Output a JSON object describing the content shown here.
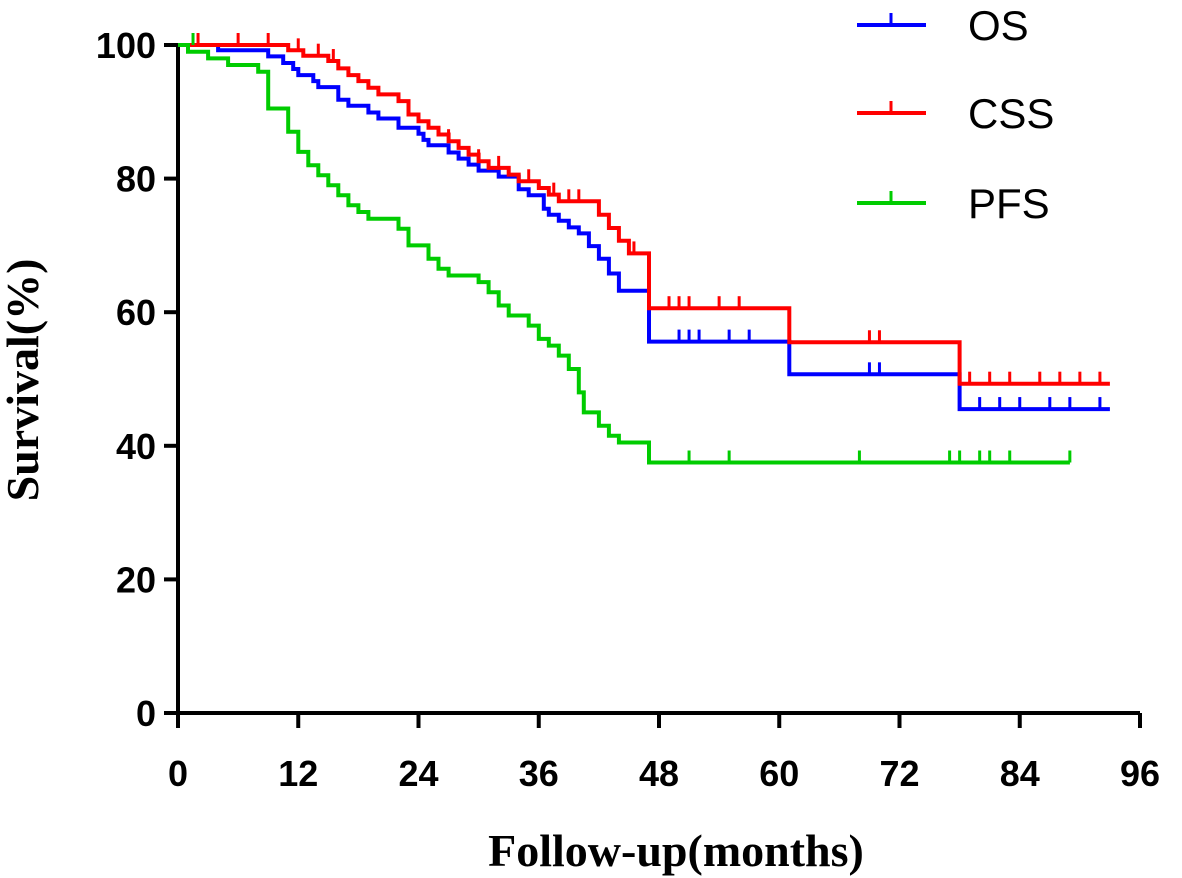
{
  "chart_data": {
    "type": "line",
    "subtype": "kaplan-meier",
    "title": "",
    "xlabel": "Follow-up(months)",
    "ylabel": "Survival(%)",
    "xlim": [
      0,
      96
    ],
    "ylim": [
      0,
      100
    ],
    "xticks": [
      0,
      12,
      24,
      36,
      48,
      60,
      72,
      84,
      96
    ],
    "yticks": [
      0,
      20,
      40,
      60,
      80,
      100
    ],
    "grid": false,
    "legend_position": "top-right",
    "series": [
      {
        "name": "OS",
        "color": "#0000ff",
        "steps": [
          [
            0,
            100
          ],
          [
            4,
            99.2
          ],
          [
            9,
            98.3
          ],
          [
            10.5,
            97.3
          ],
          [
            11.5,
            96.4
          ],
          [
            12,
            95.5
          ],
          [
            13.5,
            94.6
          ],
          [
            14,
            93.7
          ],
          [
            16,
            91.8
          ],
          [
            17,
            90.9
          ],
          [
            19,
            89.9
          ],
          [
            20,
            89
          ],
          [
            22,
            87.6
          ],
          [
            24,
            86.7
          ],
          [
            24.5,
            85.8
          ],
          [
            25,
            85
          ],
          [
            27,
            83.9
          ],
          [
            28,
            83
          ],
          [
            29,
            82.1
          ],
          [
            30,
            81.2
          ],
          [
            32,
            80.3
          ],
          [
            34,
            78.4
          ],
          [
            35,
            77.5
          ],
          [
            36.5,
            75.5
          ],
          [
            37,
            74.6
          ],
          [
            38,
            73.7
          ],
          [
            39,
            72.7
          ],
          [
            40,
            71.8
          ],
          [
            41,
            69.9
          ],
          [
            42,
            68
          ],
          [
            43,
            65.8
          ],
          [
            44,
            63.2
          ],
          [
            47,
            55.6
          ],
          [
            61,
            50.7
          ],
          [
            78,
            45.5
          ],
          [
            93,
            45.5
          ]
        ],
        "censored": [
          [
            50,
            55.6
          ],
          [
            51,
            55.6
          ],
          [
            52,
            55.6
          ],
          [
            55,
            55.6
          ],
          [
            57,
            55.6
          ],
          [
            69,
            50.7
          ],
          [
            70,
            50.7
          ],
          [
            80,
            45.5
          ],
          [
            82,
            45.5
          ],
          [
            84,
            45.5
          ],
          [
            87,
            45.5
          ],
          [
            89,
            45.5
          ],
          [
            92,
            45.5
          ]
        ]
      },
      {
        "name": "CSS",
        "color": "#ff0000",
        "steps": [
          [
            0,
            100
          ],
          [
            11,
            99.2
          ],
          [
            12.5,
            98.4
          ],
          [
            15,
            97.6
          ],
          [
            16,
            96.5
          ],
          [
            17,
            95.5
          ],
          [
            18,
            94.6
          ],
          [
            19,
            93.6
          ],
          [
            20,
            92.6
          ],
          [
            22,
            91.6
          ],
          [
            23,
            89.6
          ],
          [
            24,
            88.6
          ],
          [
            25,
            87.6
          ],
          [
            26,
            86.6
          ],
          [
            27,
            85.6
          ],
          [
            28,
            84.6
          ],
          [
            29,
            83.6
          ],
          [
            30,
            82.6
          ],
          [
            31,
            81.6
          ],
          [
            33,
            80.6
          ],
          [
            34,
            79.6
          ],
          [
            36,
            78.6
          ],
          [
            37,
            77.6
          ],
          [
            38,
            76.6
          ],
          [
            42,
            74.6
          ],
          [
            43,
            72.6
          ],
          [
            44,
            70.7
          ],
          [
            45,
            68.8
          ],
          [
            47,
            60.6
          ],
          [
            61,
            55.5
          ],
          [
            78,
            49.3
          ],
          [
            93,
            49.3
          ]
        ],
        "censored": [
          [
            2,
            100
          ],
          [
            6,
            100
          ],
          [
            9,
            100
          ],
          [
            12,
            99.2
          ],
          [
            14,
            98.4
          ],
          [
            15.5,
            97.6
          ],
          [
            27,
            85.6
          ],
          [
            30,
            82.6
          ],
          [
            32,
            81.6
          ],
          [
            35,
            79.6
          ],
          [
            37.5,
            77.6
          ],
          [
            39,
            76.6
          ],
          [
            40,
            76.6
          ],
          [
            42,
            74.6
          ],
          [
            45.5,
            68.8
          ],
          [
            49,
            60.6
          ],
          [
            50,
            60.6
          ],
          [
            51,
            60.6
          ],
          [
            54,
            60.6
          ],
          [
            56,
            60.6
          ],
          [
            69,
            55.5
          ],
          [
            70,
            55.5
          ],
          [
            79,
            49.3
          ],
          [
            81,
            49.3
          ],
          [
            83,
            49.3
          ],
          [
            86,
            49.3
          ],
          [
            88,
            49.3
          ],
          [
            90,
            49.3
          ],
          [
            92,
            49.3
          ]
        ]
      },
      {
        "name": "PFS",
        "color": "#00cc00",
        "steps": [
          [
            0,
            100
          ],
          [
            1,
            99
          ],
          [
            3,
            98
          ],
          [
            5,
            97
          ],
          [
            8,
            96
          ],
          [
            9,
            90.5
          ],
          [
            11,
            87
          ],
          [
            12,
            84
          ],
          [
            13,
            82
          ],
          [
            14,
            80.5
          ],
          [
            15,
            79
          ],
          [
            16,
            77.5
          ],
          [
            17,
            76
          ],
          [
            18,
            75
          ],
          [
            19,
            74
          ],
          [
            22,
            72.5
          ],
          [
            23,
            70
          ],
          [
            25,
            68
          ],
          [
            26,
            66.5
          ],
          [
            27,
            65.5
          ],
          [
            30,
            64.5
          ],
          [
            31,
            63
          ],
          [
            32,
            61
          ],
          [
            33,
            59.5
          ],
          [
            35,
            58
          ],
          [
            36,
            56
          ],
          [
            37,
            55
          ],
          [
            38,
            53.5
          ],
          [
            39,
            51.5
          ],
          [
            40,
            48
          ],
          [
            40.5,
            45
          ],
          [
            42,
            43
          ],
          [
            43,
            41.5
          ],
          [
            44,
            40.5
          ],
          [
            47,
            37.5
          ],
          [
            89,
            37.5
          ]
        ],
        "censored": [
          [
            1.5,
            100
          ],
          [
            51,
            37.5
          ],
          [
            55,
            37.5
          ],
          [
            68,
            37.5
          ],
          [
            77,
            37.5
          ],
          [
            78,
            37.5
          ],
          [
            80,
            37.5
          ],
          [
            81,
            37.5
          ],
          [
            83,
            37.5
          ],
          [
            89,
            37.5
          ]
        ]
      }
    ]
  }
}
